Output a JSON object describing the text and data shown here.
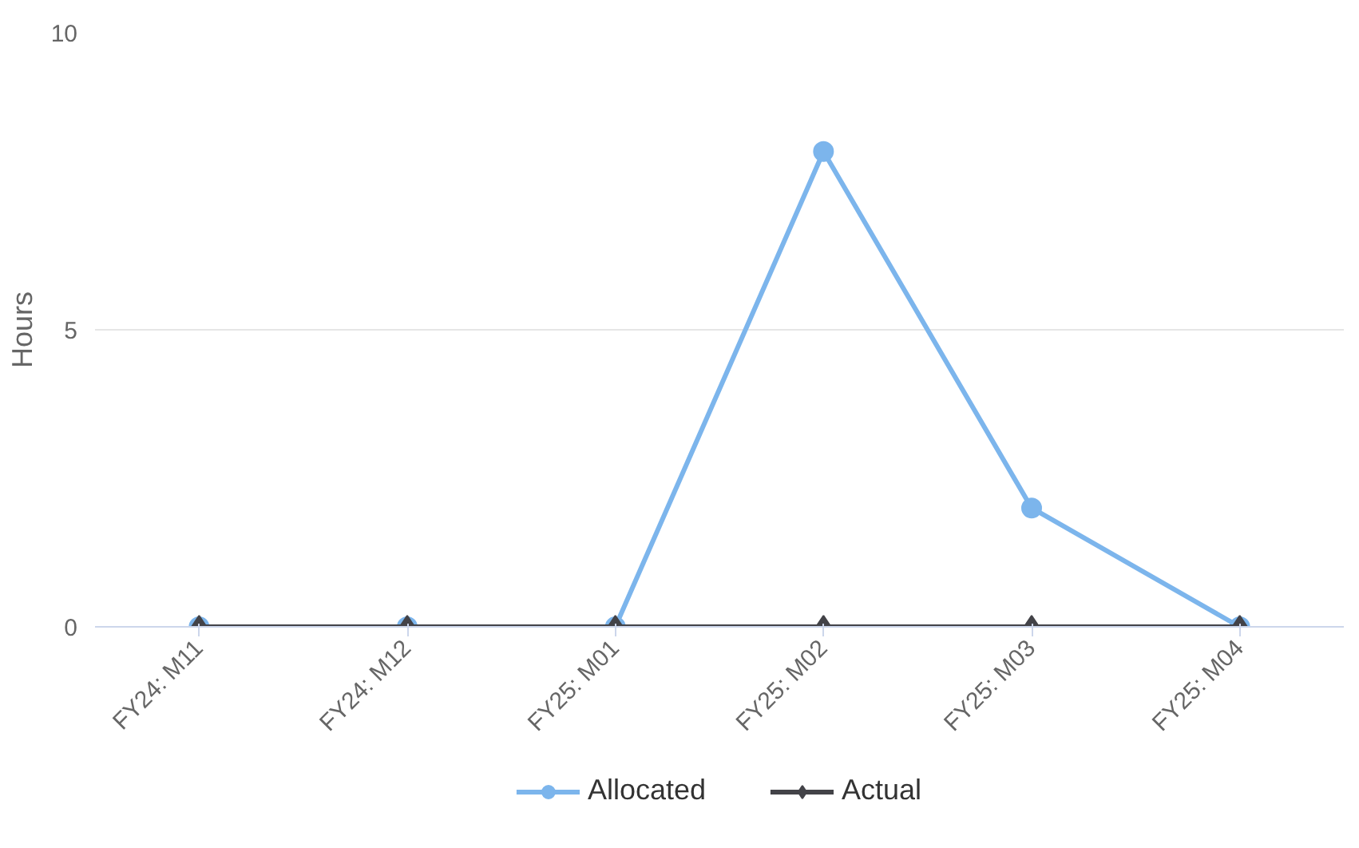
{
  "chart_data": {
    "type": "line",
    "ylabel": "Hours",
    "categories": [
      "FY24: M11",
      "FY24: M12",
      "FY25: M01",
      "FY25: M02",
      "FY25: M03",
      "FY25: M04"
    ],
    "series": [
      {
        "name": "Allocated",
        "color": "#7cb5ec",
        "marker": "circle",
        "values": [
          0,
          0,
          0,
          8,
          2,
          0
        ]
      },
      {
        "name": "Actual",
        "color": "#434348",
        "marker": "diamond",
        "values": [
          0,
          0,
          0,
          0,
          0,
          0
        ]
      }
    ],
    "ylim": [
      0,
      10
    ],
    "yticks": [
      0,
      5,
      10
    ],
    "grid": "y",
    "legend": "bottom",
    "line_style": "solid"
  }
}
